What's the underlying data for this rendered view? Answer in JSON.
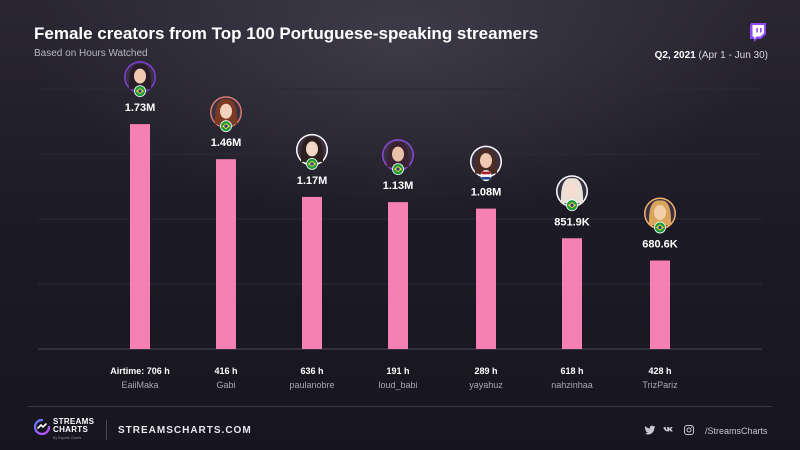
{
  "header": {
    "title": "Female creators from Top 100 Portuguese-speaking streamers",
    "subtitle": "Based on Hours Watched",
    "period_bold": "Q2, 2021",
    "period_range": "(Apr 1 - Jun 30)"
  },
  "chart_data": {
    "type": "bar",
    "title": "Female creators from Top 100 Portuguese-speaking streamers",
    "subtitle": "Based on Hours Watched",
    "categories": [
      "EaiiMaka",
      "Gabi",
      "paulanobre",
      "loud_babi",
      "yayahuz",
      "nahzinhaa",
      "TrizPariz"
    ],
    "values": [
      1730000,
      1460000,
      1170000,
      1130000,
      1080000,
      851900,
      680600
    ],
    "value_labels": [
      "1.73M",
      "1.46M",
      "1.17M",
      "1.13M",
      "1.08M",
      "851.9K",
      "680.6K"
    ],
    "airtime": [
      "Airtime: 706 h",
      "416 h",
      "636 h",
      "191 h",
      "289 h",
      "618 h",
      "428 h"
    ],
    "flags": [
      "brazil",
      "brazil",
      "brazil",
      "brazil",
      "netherlands",
      "brazil",
      "brazil"
    ],
    "bar_color": "#f67fb3",
    "ylim": [
      0,
      2000000
    ],
    "grid": true,
    "legend": "none"
  },
  "footer": {
    "brand_line1": "STREAMS",
    "brand_line2": "CHARTS",
    "brand_by": "By Esports Charts",
    "site": "STREAMSCHARTS.COM",
    "handle": "/StreamsCharts",
    "icons": [
      "twitter-icon",
      "vk-icon",
      "instagram-icon"
    ]
  },
  "colors": {
    "background": "#1c1a24",
    "bar": "#f67fb3",
    "twitch": "#9146ff",
    "grid": "#3a3744"
  }
}
